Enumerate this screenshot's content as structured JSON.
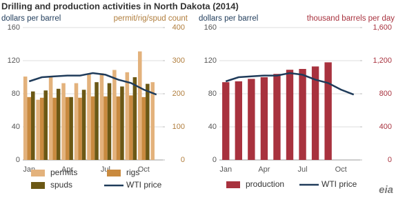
{
  "title": "Drilling and production activities in North Dakota (2014)",
  "logo": "eia",
  "chart_data": [
    {
      "type": "bar",
      "ylabel": "dollars per barrel",
      "y2label": "permit/rig/spud count",
      "ylabel_color": "#1f3b5a",
      "y2label_color": "#b07d3c",
      "categories": [
        "Jan",
        null,
        null,
        "Apr",
        null,
        null,
        "Jul",
        null,
        null,
        "Oct",
        null
      ],
      "ylim": [
        0,
        160
      ],
      "yticks": [
        0,
        40,
        80,
        120,
        160
      ],
      "y2lim": [
        0,
        400
      ],
      "y2ticks": [
        0,
        100,
        200,
        300,
        400
      ],
      "grid": true,
      "series": [
        {
          "name": "permits",
          "color": "#e3b27c",
          "axis": "y2",
          "values": [
            252,
            182,
            250,
            232,
            232,
            260,
            262,
            272,
            265,
            328,
            235
          ]
        },
        {
          "name": "rigs",
          "color": "#c98a3f",
          "axis": "y2",
          "values": [
            190,
            188,
            188,
            190,
            188,
            192,
            192,
            192,
            195,
            190,
            null
          ]
        },
        {
          "name": "spuds",
          "color": "#6b5815",
          "axis": "y2",
          "values": [
            207,
            210,
            215,
            190,
            212,
            235,
            232,
            222,
            250,
            230,
            null
          ]
        },
        {
          "name": "WTI price",
          "color": "#1f3b5a",
          "axis": "y",
          "type": "line",
          "values": [
            95,
            100,
            101,
            102,
            102,
            105,
            103,
            97,
            93,
            85,
            79
          ]
        }
      ]
    },
    {
      "type": "bar",
      "ylabel": "dollars per barrel",
      "y2label": "thousand  barrels per day",
      "ylabel_color": "#1f3b5a",
      "y2label_color": "#a8323e",
      "categories": [
        "Jan",
        null,
        null,
        "Apr",
        null,
        null,
        "Jul",
        null,
        null,
        "Oct",
        null
      ],
      "ylim": [
        0,
        160
      ],
      "yticks": [
        0,
        40,
        80,
        120,
        160
      ],
      "y2lim": [
        0,
        1600
      ],
      "y2ticks": [
        0,
        400,
        800,
        {
          "value": 1200,
          "label": "1,200"
        },
        {
          "value": 1600,
          "label": "1,600"
        }
      ],
      "grid": true,
      "series": [
        {
          "name": "production",
          "color": "#a8323e",
          "axis": "y2",
          "values": [
            940,
            950,
            980,
            1000,
            1040,
            1090,
            1100,
            1130,
            1180,
            null,
            null
          ]
        },
        {
          "name": "WTI price",
          "color": "#1f3b5a",
          "axis": "y",
          "type": "line",
          "values": [
            95,
            100,
            101,
            102,
            102,
            105,
            103,
            97,
            93,
            85,
            79
          ]
        }
      ]
    }
  ]
}
